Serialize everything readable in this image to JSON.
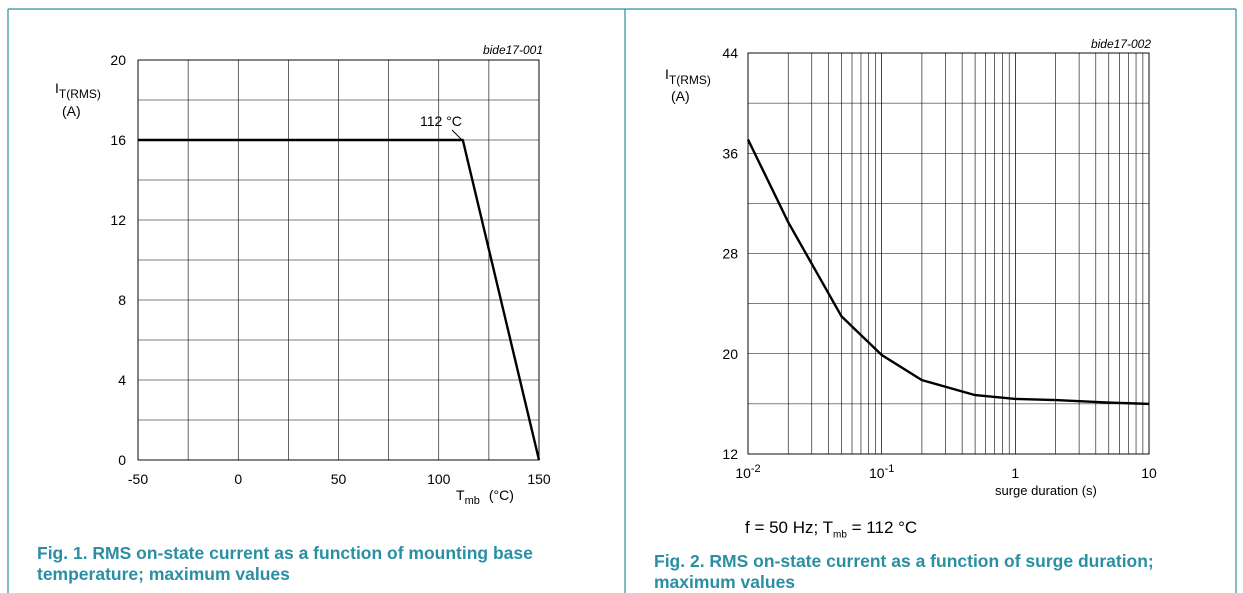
{
  "colors": {
    "caption": "#2a8fa3",
    "frame": "#2a8fa3",
    "grid": "#000000",
    "curve": "#000000"
  },
  "chart_data": [
    {
      "type": "line",
      "id_label": "bide17-001",
      "ylabel": {
        "main": "I",
        "sub": "T(RMS)",
        "unit": "(A)"
      },
      "xlabel": {
        "main": "T",
        "sub": "mb",
        "unit": "(°C)"
      },
      "xlim": [
        -50,
        150
      ],
      "ylim": [
        0,
        20
      ],
      "x_ticks": [
        "-50",
        "0",
        "50",
        "100",
        "150"
      ],
      "y_ticks": [
        "0",
        "4",
        "8",
        "12",
        "16",
        "20"
      ],
      "grid": true,
      "series": [
        {
          "x": [
            -50,
            112,
            150
          ],
          "y": [
            16,
            16,
            0
          ]
        }
      ],
      "annotation": "112 °C",
      "caption": "Fig. 1. RMS on-state current as a function of mounting base temperature; maximum values"
    },
    {
      "type": "line",
      "id_label": "bide17-002",
      "ylabel": {
        "main": "I",
        "sub": "T(RMS)",
        "unit": "(A)"
      },
      "xlabel": "surge duration  (s)",
      "xscale": "log",
      "xlim": [
        0.01,
        10
      ],
      "ylim": [
        12,
        44
      ],
      "x_ticks": [
        {
          "base": "10",
          "exp": "-2"
        },
        {
          "base": "10",
          "exp": "-1"
        },
        {
          "base": "1",
          "exp": ""
        },
        {
          "base": "10",
          "exp": ""
        }
      ],
      "y_ticks": [
        "12",
        "20",
        "28",
        "36",
        "44"
      ],
      "grid": true,
      "series": [
        {
          "x": [
            0.01,
            0.02,
            0.05,
            0.1,
            0.2,
            0.5,
            1,
            2,
            5,
            10
          ],
          "y": [
            37.1,
            30.5,
            23.0,
            19.9,
            17.9,
            16.7,
            16.4,
            16.3,
            16.1,
            16.0
          ]
        }
      ],
      "note": {
        "prefix": "f = 50 Hz; T",
        "sub": "mb",
        "suffix": " = 112 °C"
      },
      "caption": "Fig. 2. RMS on-state current as a function of surge duration; maximum values"
    }
  ]
}
